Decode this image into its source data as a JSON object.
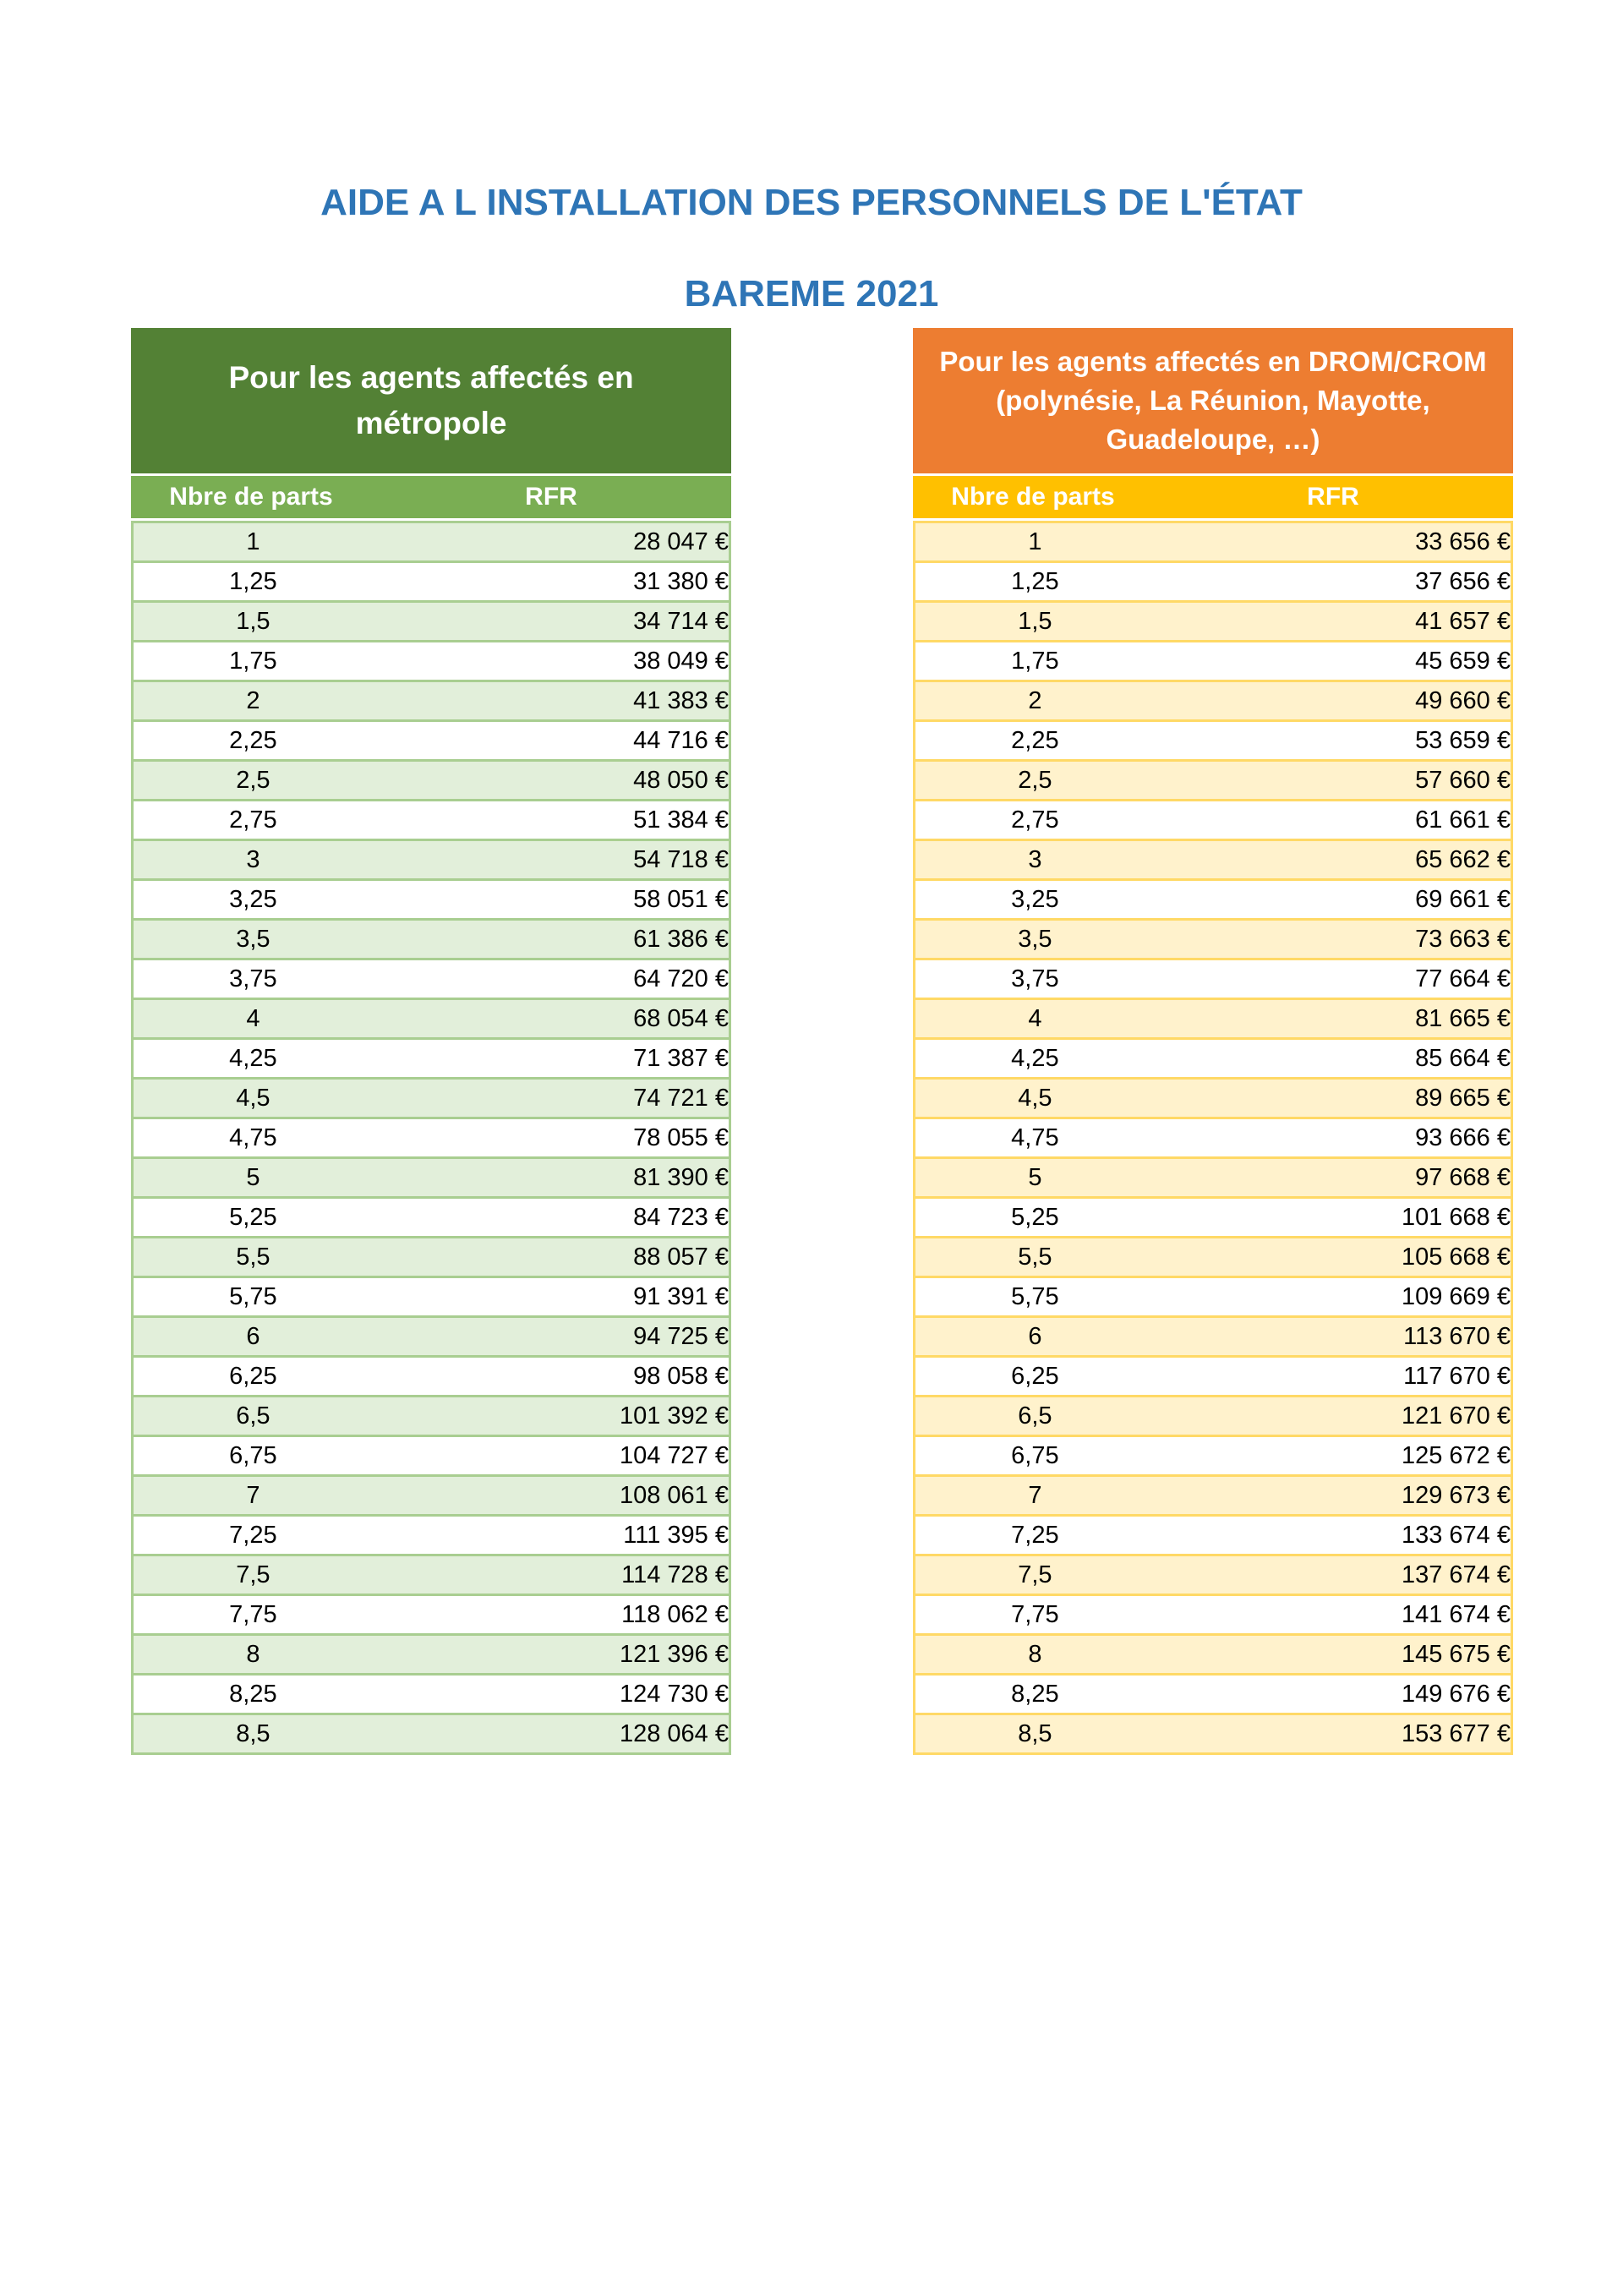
{
  "page": {
    "title_line1": "AIDE A L INSTALLATION DES PERSONNELS DE L'ÉTAT",
    "title_line2": "BAREME 2021"
  },
  "colors": {
    "title_blue": "#2E75B6",
    "metropole": {
      "caption_bg": "#538135",
      "header_bg": "#7AAE53",
      "row_alt_bg": "#E2EFDA",
      "border": "#A9CE91"
    },
    "dromcrom": {
      "caption_bg": "#ED7D31",
      "header_bg": "#FFC000",
      "row_alt_bg": "#FFF2CC",
      "border": "#FFD966"
    }
  },
  "tables": {
    "metropole": {
      "caption_lines": [
        "Pour les agents affectés en",
        "métropole"
      ],
      "columns": [
        "Nbre de parts",
        "RFR"
      ],
      "rows": [
        [
          "1",
          "28 047 €"
        ],
        [
          "1,25",
          "31 380 €"
        ],
        [
          "1,5",
          "34 714 €"
        ],
        [
          "1,75",
          "38 049 €"
        ],
        [
          "2",
          "41 383 €"
        ],
        [
          "2,25",
          "44 716 €"
        ],
        [
          "2,5",
          "48 050 €"
        ],
        [
          "2,75",
          "51 384 €"
        ],
        [
          "3",
          "54 718 €"
        ],
        [
          "3,25",
          "58 051 €"
        ],
        [
          "3,5",
          "61 386 €"
        ],
        [
          "3,75",
          "64 720 €"
        ],
        [
          "4",
          "68 054 €"
        ],
        [
          "4,25",
          "71 387 €"
        ],
        [
          "4,5",
          "74 721 €"
        ],
        [
          "4,75",
          "78 055 €"
        ],
        [
          "5",
          "81 390 €"
        ],
        [
          "5,25",
          "84 723 €"
        ],
        [
          "5,5",
          "88 057 €"
        ],
        [
          "5,75",
          "91 391 €"
        ],
        [
          "6",
          "94 725 €"
        ],
        [
          "6,25",
          "98 058 €"
        ],
        [
          "6,5",
          "101 392 €"
        ],
        [
          "6,75",
          "104 727 €"
        ],
        [
          "7",
          "108 061 €"
        ],
        [
          "7,25",
          "111 395 €"
        ],
        [
          "7,5",
          "114 728 €"
        ],
        [
          "7,75",
          "118 062 €"
        ],
        [
          "8",
          "121 396 €"
        ],
        [
          "8,25",
          "124 730 €"
        ],
        [
          "8,5",
          "128 064 €"
        ]
      ]
    },
    "dromcrom": {
      "caption_lines": [
        "Pour les agents affectés en DROM/CROM",
        "(polynésie, La Réunion, Mayotte,",
        "Guadeloupe, …)"
      ],
      "columns": [
        "Nbre de parts",
        "RFR"
      ],
      "rows": [
        [
          "1",
          "33 656 €"
        ],
        [
          "1,25",
          "37 656 €"
        ],
        [
          "1,5",
          "41 657 €"
        ],
        [
          "1,75",
          "45 659 €"
        ],
        [
          "2",
          "49 660 €"
        ],
        [
          "2,25",
          "53 659 €"
        ],
        [
          "2,5",
          "57 660 €"
        ],
        [
          "2,75",
          "61 661 €"
        ],
        [
          "3",
          "65 662 €"
        ],
        [
          "3,25",
          "69 661 €"
        ],
        [
          "3,5",
          "73 663 €"
        ],
        [
          "3,75",
          "77 664 €"
        ],
        [
          "4",
          "81 665 €"
        ],
        [
          "4,25",
          "85 664 €"
        ],
        [
          "4,5",
          "89 665 €"
        ],
        [
          "4,75",
          "93 666 €"
        ],
        [
          "5",
          "97 668 €"
        ],
        [
          "5,25",
          "101 668 €"
        ],
        [
          "5,5",
          "105 668 €"
        ],
        [
          "5,75",
          "109 669 €"
        ],
        [
          "6",
          "113 670 €"
        ],
        [
          "6,25",
          "117 670 €"
        ],
        [
          "6,5",
          "121 670 €"
        ],
        [
          "6,75",
          "125 672 €"
        ],
        [
          "7",
          "129 673 €"
        ],
        [
          "7,25",
          "133 674 €"
        ],
        [
          "7,5",
          "137 674 €"
        ],
        [
          "7,75",
          "141 674 €"
        ],
        [
          "8",
          "145 675 €"
        ],
        [
          "8,25",
          "149 676 €"
        ],
        [
          "8,5",
          "153 677 €"
        ]
      ]
    }
  }
}
